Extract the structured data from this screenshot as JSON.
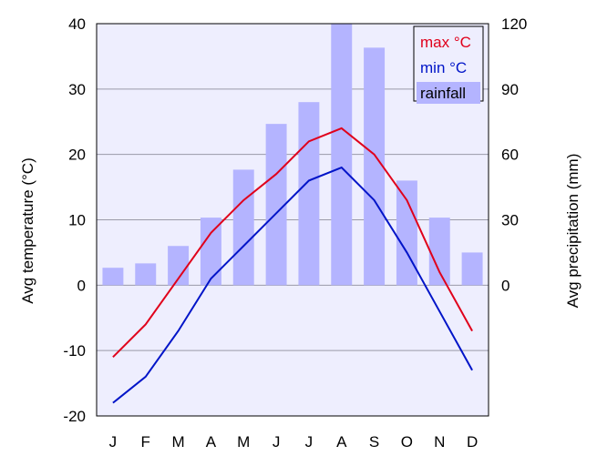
{
  "chart_data": {
    "type": "bar",
    "categories": [
      "J",
      "F",
      "M",
      "A",
      "M",
      "J",
      "J",
      "A",
      "S",
      "O",
      "N",
      "D"
    ],
    "series": [
      {
        "name": "max °C",
        "kind": "line",
        "axis": "left",
        "color": "#e0001b",
        "values": [
          -11,
          -6,
          1,
          8,
          13,
          17,
          22,
          24,
          20,
          13,
          2,
          -7
        ]
      },
      {
        "name": "min °C",
        "kind": "line",
        "axis": "left",
        "color": "#0014c8",
        "values": [
          -18,
          -14,
          -7,
          1,
          6,
          11,
          16,
          18,
          13,
          5,
          -4,
          -13
        ]
      },
      {
        "name": "rainfall",
        "kind": "bar",
        "axis": "right",
        "color": "#b4b4ff",
        "values": [
          8,
          10,
          18,
          31,
          53,
          74,
          84,
          120,
          109,
          48,
          31,
          15
        ]
      }
    ],
    "ylabel": "Avg temperature (°C)",
    "y2label": "Avg precipitation (mm)",
    "ylim": [
      -20,
      40
    ],
    "y2lim": [
      -60,
      120
    ],
    "yticks": [
      40,
      30,
      20,
      10,
      0,
      -10,
      -20
    ],
    "y2ticks": [
      120,
      90,
      60,
      30,
      0
    ],
    "grid": true,
    "legend_position": "top-right",
    "plot_background": "#eeeefe"
  }
}
